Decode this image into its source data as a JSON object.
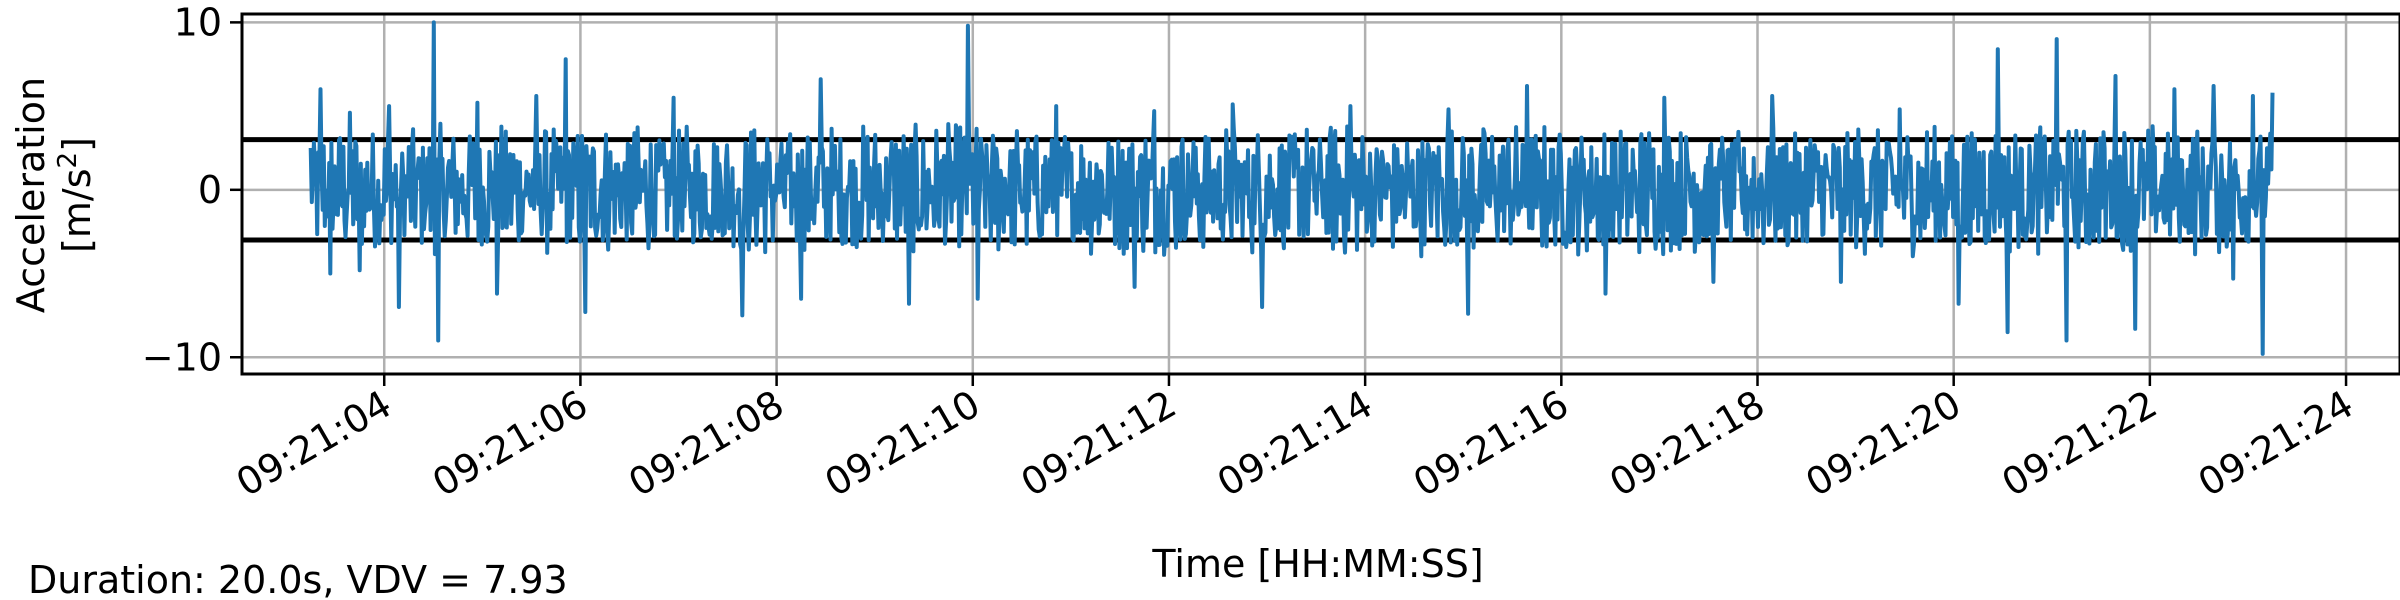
{
  "chart_data": {
    "type": "line",
    "title": "",
    "xlabel": "Time [HH:MM:SS]",
    "ylabel_line1": "Acceleration",
    "ylabel_line2_prefix": "[m/s",
    "ylabel_line2_sup": "2",
    "ylabel_line2_suffix": "]",
    "footer": "Duration: 20.0s, VDV = 7.93",
    "xlim": [
      -0.7,
      21.3
    ],
    "ylim": [
      -11,
      10.5
    ],
    "yticks": [
      10,
      0,
      -10
    ],
    "ytick_labels": [
      "10",
      "0",
      "−10"
    ],
    "xticks": [
      0.75,
      2.75,
      4.75,
      6.75,
      8.75,
      10.75,
      12.75,
      14.75,
      16.75,
      18.75,
      20.75
    ],
    "xtick_labels": [
      "09:21:04",
      "09:21:06",
      "09:21:08",
      "09:21:10",
      "09:21:12",
      "09:21:14",
      "09:21:16",
      "09:21:18",
      "09:21:20",
      "09:21:22",
      "09:21:24"
    ],
    "hlines": [
      3,
      -3
    ],
    "grid": true,
    "series": [
      {
        "name": "acceleration",
        "color": "#1f77b4",
        "t_start": 0,
        "t_end": 20,
        "peaks": [
          [
            0.1,
            6.0
          ],
          [
            0.2,
            -5.0
          ],
          [
            0.4,
            4.6
          ],
          [
            0.5,
            -4.8
          ],
          [
            0.8,
            5.0
          ],
          [
            0.9,
            -7.0
          ],
          [
            1.25,
            10.0
          ],
          [
            1.3,
            -9.0
          ],
          [
            1.7,
            5.2
          ],
          [
            1.9,
            -6.2
          ],
          [
            2.3,
            5.6
          ],
          [
            2.6,
            7.8
          ],
          [
            2.8,
            -7.3
          ],
          [
            3.7,
            5.5
          ],
          [
            4.4,
            -7.5
          ],
          [
            5.0,
            -6.5
          ],
          [
            5.2,
            6.6
          ],
          [
            6.1,
            -6.8
          ],
          [
            6.7,
            9.8
          ],
          [
            6.8,
            -6.5
          ],
          [
            7.6,
            5.0
          ],
          [
            8.4,
            -5.8
          ],
          [
            8.6,
            4.7
          ],
          [
            9.4,
            5.1
          ],
          [
            9.7,
            -7.0
          ],
          [
            10.6,
            5.0
          ],
          [
            11.6,
            4.8
          ],
          [
            11.8,
            -7.4
          ],
          [
            12.4,
            6.2
          ],
          [
            13.2,
            -6.2
          ],
          [
            13.8,
            5.5
          ],
          [
            14.3,
            -5.5
          ],
          [
            14.9,
            5.6
          ],
          [
            15.6,
            -5.5
          ],
          [
            16.2,
            4.8
          ],
          [
            16.8,
            -6.8
          ],
          [
            17.2,
            8.4
          ],
          [
            17.3,
            -8.5
          ],
          [
            17.8,
            9.0
          ],
          [
            17.9,
            -9.0
          ],
          [
            18.4,
            6.8
          ],
          [
            18.6,
            -8.3
          ],
          [
            19.0,
            6.0
          ],
          [
            19.4,
            6.2
          ],
          [
            19.6,
            -5.3
          ],
          [
            19.8,
            5.6
          ],
          [
            19.9,
            -9.8
          ],
          [
            20.0,
            5.8
          ]
        ]
      }
    ]
  }
}
